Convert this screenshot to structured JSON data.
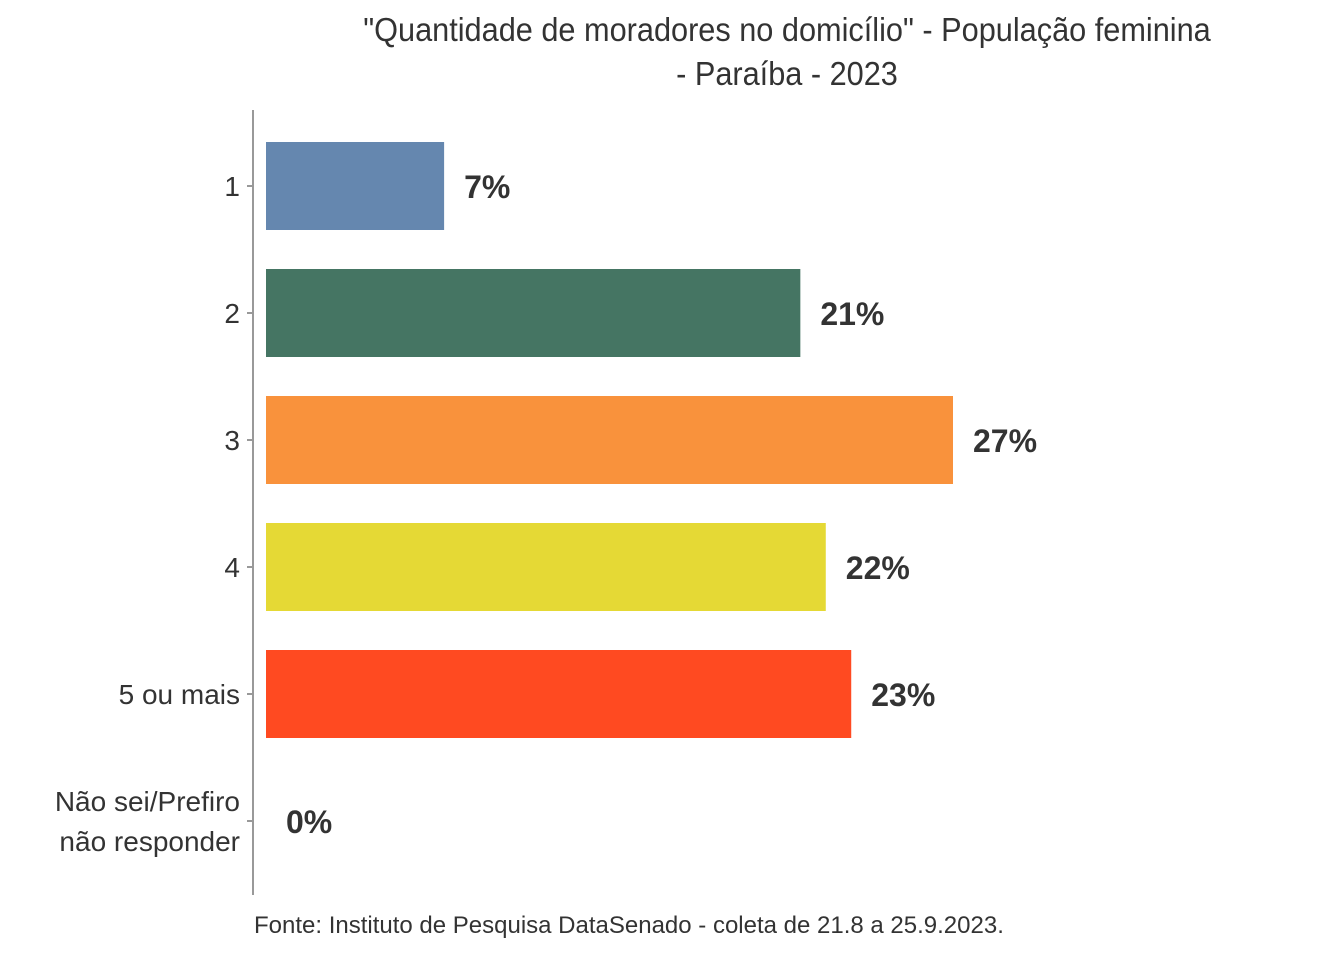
{
  "chart_data": {
    "type": "bar",
    "orientation": "horizontal",
    "title": "\"Quantidade de moradores no domicílio\" - População feminina - Paraíba - 2023",
    "title_lines": [
      "\"Quantidade de moradores no domicílio\" - População feminina",
      "- Paraíba - 2023"
    ],
    "caption": "Fonte: Instituto de Pesquisa DataSenado - coleta de 21.8 a 25.9.2023.",
    "xlabel": "",
    "ylabel": "",
    "xlim": [
      0,
      30
    ],
    "grid": false,
    "legend": "none",
    "categories": [
      {
        "label_lines": [
          "1"
        ],
        "value": 7,
        "label": "7%",
        "color": "#6587AF"
      },
      {
        "label_lines": [
          "2"
        ],
        "value": 21,
        "label": "21%",
        "color": "#457563"
      },
      {
        "label_lines": [
          "3"
        ],
        "value": 27,
        "label": "27%",
        "color": "#F9923C"
      },
      {
        "label_lines": [
          "4"
        ],
        "value": 22,
        "label": "22%",
        "color": "#E5D935"
      },
      {
        "label_lines": [
          "5 ou mais"
        ],
        "value": 23,
        "label": "23%",
        "color": "#FF4A21"
      },
      {
        "label_lines": [
          "Não sei/Prefiro",
          "não responder"
        ],
        "value": 0,
        "label": "0%",
        "color": "#999999"
      }
    ]
  }
}
